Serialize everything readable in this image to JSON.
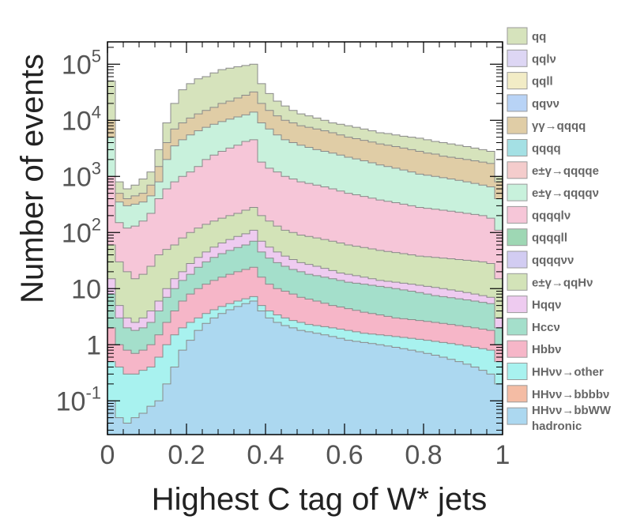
{
  "chart_data": {
    "type": "area",
    "xlabel": "Highest C tag of W* jets",
    "ylabel": "Number of events",
    "xlim": [
      0,
      1
    ],
    "ylim": [
      0.025,
      250000
    ],
    "yscale": "log",
    "stacked": true,
    "histogram_steps": true,
    "grid": false,
    "legend_position": "right",
    "x_ticks": [
      {
        "value": 0,
        "label": "0"
      },
      {
        "value": 0.2,
        "label": "0.2"
      },
      {
        "value": 0.4,
        "label": "0.4"
      },
      {
        "value": 0.6,
        "label": "0.6"
      },
      {
        "value": 0.8,
        "label": "0.8"
      },
      {
        "value": 1,
        "label": "1"
      }
    ],
    "y_ticks": [
      {
        "value": 0.1,
        "base": "10",
        "exp": "-1"
      },
      {
        "value": 1,
        "base": "1",
        "exp": ""
      },
      {
        "value": 10,
        "base": "10",
        "exp": ""
      },
      {
        "value": 100,
        "base": "10",
        "exp": "2"
      },
      {
        "value": 1000,
        "base": "10",
        "exp": "3"
      },
      {
        "value": 10000,
        "base": "10",
        "exp": "4"
      },
      {
        "value": 100000,
        "base": "10",
        "exp": "5"
      }
    ],
    "bin_centers": [
      0.01,
      0.03,
      0.05,
      0.07,
      0.09,
      0.11,
      0.13,
      0.15,
      0.17,
      0.19,
      0.21,
      0.23,
      0.25,
      0.27,
      0.29,
      0.31,
      0.33,
      0.35,
      0.37,
      0.39,
      0.41,
      0.43,
      0.45,
      0.47,
      0.49,
      0.51,
      0.53,
      0.55,
      0.57,
      0.59,
      0.61,
      0.63,
      0.65,
      0.67,
      0.69,
      0.71,
      0.73,
      0.75,
      0.77,
      0.79,
      0.81,
      0.83,
      0.85,
      0.87,
      0.89,
      0.91,
      0.93,
      0.95,
      0.97,
      0.99
    ],
    "stack_tops": [
      {
        "name": "qq",
        "values": [
          50000,
          800,
          600,
          700,
          900,
          1200,
          3000,
          9000,
          20000,
          35000,
          45000,
          55000,
          60000,
          70000,
          80000,
          85000,
          90000,
          95000,
          100000,
          45000,
          30000,
          22000,
          18000,
          15000,
          13000,
          12000,
          11000,
          10000,
          9000,
          8500,
          8000,
          7500,
          7000,
          6500,
          6000,
          5800,
          5500,
          5200,
          5000,
          4800,
          4500,
          4200,
          4000,
          3800,
          3600,
          3400,
          3200,
          3000,
          2800,
          1000
        ]
      },
      {
        "name": "γγ→qqqq",
        "values": [
          10000,
          500,
          400,
          450,
          500,
          700,
          1500,
          4000,
          7000,
          9000,
          11000,
          13000,
          15000,
          17000,
          20000,
          22000,
          25000,
          28000,
          32000,
          20000,
          15000,
          12000,
          10000,
          9000,
          8000,
          7500,
          7000,
          6500,
          6000,
          5500,
          5000,
          4700,
          4400,
          4100,
          3800,
          3600,
          3400,
          3200,
          3000,
          2800,
          2600,
          2500,
          2300,
          2200,
          2100,
          2000,
          1900,
          1800,
          1700,
          800
        ]
      },
      {
        "name": "e±γ→qqqqν",
        "values": [
          5000,
          350,
          300,
          320,
          350,
          450,
          800,
          2000,
          3500,
          4500,
          5500,
          6500,
          7500,
          8500,
          9500,
          10500,
          11500,
          12500,
          14000,
          9000,
          7000,
          5500,
          4500,
          4000,
          3600,
          3300,
          3000,
          2800,
          2600,
          2400,
          2200,
          2050,
          1900,
          1750,
          1600,
          1500,
          1400,
          1300,
          1200,
          1100,
          1050,
          1000,
          950,
          900,
          850,
          800,
          750,
          700,
          650,
          400
        ]
      },
      {
        "name": "qqqqlν",
        "values": [
          1000,
          150,
          120,
          130,
          160,
          220,
          400,
          600,
          800,
          1000,
          1200,
          1500,
          2000,
          2400,
          2800,
          3200,
          3600,
          4200,
          4500,
          1800,
          1400,
          1200,
          1000,
          900,
          800,
          750,
          700,
          650,
          600,
          550,
          500,
          470,
          440,
          410,
          380,
          360,
          340,
          320,
          300,
          280,
          270,
          260,
          250,
          240,
          230,
          220,
          210,
          200,
          180,
          110
        ]
      },
      {
        "name": "e±γ→qqHν",
        "values": [
          60,
          30,
          20,
          15,
          18,
          25,
          40,
          50,
          60,
          80,
          100,
          120,
          140,
          160,
          180,
          200,
          220,
          250,
          280,
          200,
          160,
          130,
          110,
          100,
          90,
          85,
          80,
          75,
          70,
          65,
          60,
          57,
          54,
          51,
          48,
          46,
          44,
          42,
          40,
          38,
          37,
          36,
          35,
          34,
          33,
          32,
          31,
          30,
          28,
          15
        ]
      },
      {
        "name": "Hqqν",
        "values": [
          15,
          5,
          3,
          2.5,
          3,
          4,
          6,
          10,
          15,
          20,
          28,
          36,
          45,
          55,
          65,
          75,
          85,
          95,
          110,
          70,
          55,
          45,
          38,
          33,
          29,
          27,
          25,
          23,
          21,
          19,
          18,
          17,
          16,
          15,
          14,
          13.5,
          13,
          12.5,
          12,
          11.5,
          11,
          10.5,
          10,
          9.5,
          9,
          8.5,
          8,
          7.5,
          7,
          3
        ]
      },
      {
        "name": "Hccν",
        "values": [
          8,
          3,
          2,
          1.8,
          2,
          2.5,
          4,
          7,
          10,
          14,
          18,
          24,
          30,
          36,
          42,
          48,
          54,
          60,
          70,
          45,
          35,
          29,
          25,
          22,
          20,
          18,
          17,
          16,
          15,
          14,
          13,
          12.5,
          12,
          11.5,
          11,
          10.5,
          10,
          9.5,
          9,
          8.5,
          8,
          7.5,
          7.2,
          6.9,
          6.6,
          6.3,
          6,
          5.7,
          5.4,
          2
        ]
      },
      {
        "name": "Hbbν",
        "values": [
          2,
          1,
          0.8,
          0.7,
          0.8,
          1,
          1.5,
          2.5,
          4,
          6,
          8,
          10,
          12,
          14,
          16,
          18,
          20,
          22,
          24,
          16,
          12,
          10,
          9,
          8,
          7,
          6.5,
          6,
          5.5,
          5,
          4.7,
          4.4,
          4.1,
          3.8,
          3.6,
          3.4,
          3.2,
          3,
          2.9,
          2.8,
          2.7,
          2.6,
          2.5,
          2.4,
          2.3,
          2.2,
          2.1,
          2,
          1.9,
          1.8,
          1
        ]
      },
      {
        "name": "HHνν→other",
        "values": [
          0.5,
          0.4,
          0.3,
          0.3,
          0.35,
          0.4,
          0.6,
          1,
          1.5,
          2,
          2.5,
          3,
          3.6,
          4.2,
          4.8,
          5.4,
          6,
          6.6,
          7.2,
          5,
          4,
          3.4,
          3,
          2.7,
          2.5,
          2.3,
          2.2,
          2.1,
          2,
          1.9,
          1.8,
          1.7,
          1.6,
          1.55,
          1.5,
          1.45,
          1.4,
          1.35,
          1.3,
          1.25,
          1.2,
          1.15,
          1.1,
          1.05,
          1,
          0.95,
          0.9,
          0.85,
          0.8,
          0.5
        ]
      },
      {
        "name": "HHνν→bbWW hadronic",
        "values": [
          0.1,
          0.05,
          0.04,
          0.05,
          0.06,
          0.08,
          0.1,
          0.2,
          0.4,
          0.8,
          1.2,
          1.8,
          2.4,
          3,
          3.6,
          4.2,
          4.8,
          5.4,
          6,
          4,
          3,
          2.5,
          2.2,
          2,
          1.8,
          1.7,
          1.6,
          1.5,
          1.4,
          1.3,
          1.2,
          1.15,
          1.1,
          1.05,
          1,
          0.95,
          0.9,
          0.85,
          0.8,
          0.75,
          0.7,
          0.65,
          0.6,
          0.55,
          0.5,
          0.45,
          0.4,
          0.35,
          0.3,
          0.2
        ]
      }
    ],
    "legend": [
      {
        "label": "qq",
        "color": "#d6e3bc"
      },
      {
        "label": "qqlν",
        "color": "#ddd6f4"
      },
      {
        "label": "qqll",
        "color": "#f2ecc6"
      },
      {
        "label": "qqνν",
        "color": "#b8d3f6"
      },
      {
        "label": "γγ→qqqq",
        "color": "#e0cda6"
      },
      {
        "label": "qqqq",
        "color": "#a4e0e4"
      },
      {
        "label": "e±γ→qqqqe",
        "color": "#f4cccc"
      },
      {
        "label": "e±γ→qqqqν",
        "color": "#c8f1dc"
      },
      {
        "label": "qqqqlν",
        "color": "#f6c6d8"
      },
      {
        "label": "qqqqll",
        "color": "#9ed7b4"
      },
      {
        "label": "qqqqνν",
        "color": "#d2ccf2"
      },
      {
        "label": "e±γ→qqHν",
        "color": "#d3e3b8"
      },
      {
        "label": "Hqqν",
        "color": "#eecbf0"
      },
      {
        "label": "Hccν",
        "color": "#a4dfcb"
      },
      {
        "label": "Hbbν",
        "color": "#f6b6c8"
      },
      {
        "label": "HHνν→other",
        "color": "#a8f2ef"
      },
      {
        "label": "HHνν→bbbbν",
        "color": "#f4bca4"
      },
      {
        "label": "HHνν→bbWW hadronic",
        "color": "#acd8f0"
      }
    ]
  }
}
